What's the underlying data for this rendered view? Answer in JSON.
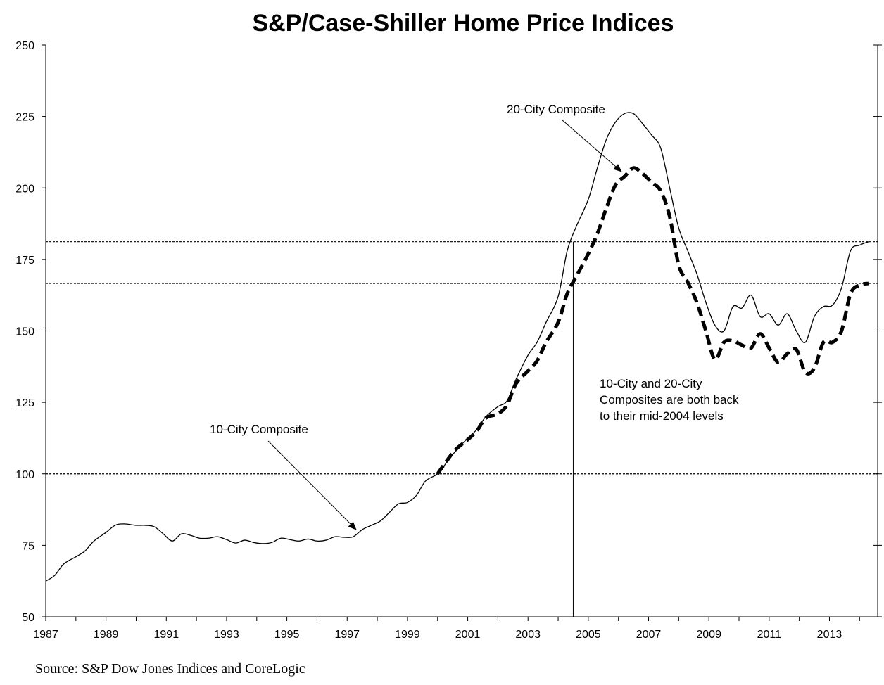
{
  "chart_data": {
    "type": "line",
    "title": "S&P/Case-Shiller Home Price Indices",
    "xlim": [
      1987,
      2014.6
    ],
    "ylim": [
      50,
      250
    ],
    "x_ticks": [
      1987,
      1989,
      1991,
      1993,
      1995,
      1997,
      1999,
      2001,
      2003,
      2005,
      2007,
      2009,
      2011,
      2013
    ],
    "y_ticks": [
      50,
      75,
      100,
      125,
      150,
      175,
      200,
      225,
      250
    ],
    "grid": false,
    "reference_lines": [
      {
        "axis": "y",
        "value": 100,
        "style": "dotted"
      },
      {
        "axis": "y",
        "value": 166.6,
        "style": "dotted"
      },
      {
        "axis": "y",
        "value": 181.2,
        "style": "dotted"
      },
      {
        "axis": "x",
        "value": 2004.5,
        "style": "solid"
      }
    ],
    "series": [
      {
        "name": "10-City Composite",
        "style": "solid-thin",
        "x": [
          1987.0,
          1987.3,
          1987.6,
          1988.0,
          1988.3,
          1988.6,
          1989.0,
          1989.3,
          1989.6,
          1990.0,
          1990.3,
          1990.6,
          1990.9,
          1991.2,
          1991.5,
          1991.8,
          1992.1,
          1992.4,
          1992.7,
          1993.0,
          1993.3,
          1993.6,
          1993.9,
          1994.2,
          1994.5,
          1994.8,
          1995.1,
          1995.4,
          1995.7,
          1996.0,
          1996.3,
          1996.6,
          1996.9,
          1997.2,
          1997.5,
          1997.8,
          1998.1,
          1998.4,
          1998.7,
          1999.0,
          1999.3,
          1999.6,
          2000.0,
          2000.3,
          2000.6,
          2001.0,
          2001.3,
          2001.6,
          2002.0,
          2002.3,
          2002.6,
          2003.0,
          2003.3,
          2003.6,
          2004.0,
          2004.3,
          2004.6,
          2005.0,
          2005.3,
          2005.6,
          2005.9,
          2006.2,
          2006.5,
          2006.8,
          2007.1,
          2007.4,
          2007.7,
          2008.0,
          2008.3,
          2008.6,
          2008.9,
          2009.2,
          2009.5,
          2009.8,
          2010.1,
          2010.4,
          2010.7,
          2011.0,
          2011.3,
          2011.6,
          2011.9,
          2012.2,
          2012.5,
          2012.8,
          2013.1,
          2013.4,
          2013.7,
          2014.0,
          2014.3
        ],
        "values": [
          62.5,
          64.5,
          68.5,
          71.0,
          73.0,
          76.5,
          79.5,
          82.0,
          82.5,
          82.0,
          82.0,
          81.5,
          79.0,
          76.5,
          79.0,
          78.5,
          77.5,
          77.5,
          78.0,
          77.0,
          75.8,
          76.8,
          76.0,
          75.6,
          76.0,
          77.5,
          77.0,
          76.5,
          77.2,
          76.5,
          76.8,
          78.0,
          77.8,
          78.0,
          80.5,
          82.0,
          83.5,
          86.5,
          89.5,
          90.0,
          92.5,
          97.5,
          100.0,
          104.0,
          108.0,
          112.5,
          115.5,
          120.0,
          123.5,
          125.5,
          133.0,
          141.5,
          146.0,
          153.0,
          162.0,
          178.0,
          186.5,
          196.0,
          207.0,
          217.0,
          223.0,
          226.0,
          226.0,
          222.5,
          218.5,
          214.0,
          200.0,
          186.0,
          178.0,
          170.0,
          160.0,
          152.0,
          150.0,
          158.5,
          158.0,
          162.5,
          155.0,
          156.0,
          152.0,
          156.0,
          150.0,
          146.0,
          155.0,
          158.5,
          159.0,
          165.0,
          178.0,
          180.0,
          181.2
        ]
      },
      {
        "name": "20-City Composite",
        "style": "dashed-thick",
        "x": [
          2000.0,
          2000.3,
          2000.6,
          2001.0,
          2001.3,
          2001.6,
          2002.0,
          2002.3,
          2002.6,
          2003.0,
          2003.3,
          2003.6,
          2004.0,
          2004.3,
          2004.6,
          2005.0,
          2005.3,
          2005.6,
          2005.9,
          2006.2,
          2006.5,
          2006.8,
          2007.1,
          2007.4,
          2007.7,
          2008.0,
          2008.3,
          2008.6,
          2008.9,
          2009.2,
          2009.5,
          2009.8,
          2010.1,
          2010.4,
          2010.7,
          2011.0,
          2011.3,
          2011.6,
          2011.9,
          2012.2,
          2012.5,
          2012.8,
          2013.1,
          2013.4,
          2013.7,
          2014.0,
          2014.3
        ],
        "values": [
          100.0,
          104.5,
          108.5,
          112.0,
          115.0,
          119.5,
          121.0,
          124.0,
          131.5,
          136.0,
          139.5,
          146.0,
          153.0,
          163.0,
          169.0,
          177.0,
          184.0,
          193.0,
          201.0,
          204.0,
          207.0,
          205.0,
          202.0,
          199.0,
          190.0,
          173.0,
          167.0,
          160.0,
          150.0,
          140.0,
          146.0,
          146.5,
          145.0,
          144.0,
          149.0,
          144.0,
          139.0,
          142.0,
          143.5,
          135.5,
          137.0,
          146.0,
          146.0,
          150.0,
          163.0,
          166.0,
          166.6
        ]
      }
    ],
    "annotations": [
      {
        "text": "20-City Composite",
        "points_to": "20-City Composite"
      },
      {
        "text": "10-City Composite",
        "points_to": "10-City Composite"
      },
      {
        "lines": [
          "10-City and 20-City",
          "Composites are both back",
          "to their mid-2004 levels"
        ]
      }
    ],
    "source": "Source: S&P Dow Jones Indices and CoreLogic"
  }
}
